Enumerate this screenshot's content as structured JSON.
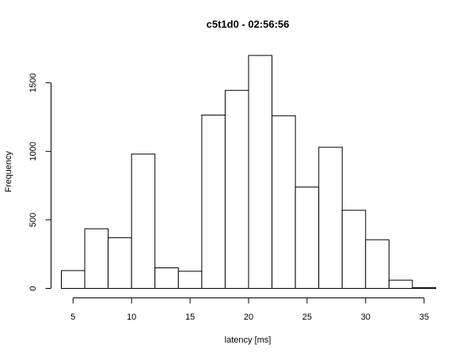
{
  "chart_data": {
    "type": "bar",
    "title": "c5t1d0 - 02:56:56",
    "xlabel": "latency [ms]",
    "ylabel": "Frequency",
    "bin_edges": [
      4,
      6,
      8,
      10,
      12,
      14,
      16,
      18,
      20,
      22,
      24,
      26,
      28,
      30,
      32,
      34,
      36
    ],
    "values": [
      130,
      435,
      370,
      980,
      150,
      125,
      1265,
      1445,
      1700,
      1260,
      740,
      1030,
      570,
      355,
      60,
      5
    ],
    "xticks": [
      5,
      10,
      15,
      20,
      25,
      30,
      35
    ],
    "yticks": [
      0,
      500,
      1000,
      1500
    ],
    "xlim": [
      4,
      36
    ],
    "ylim": [
      0,
      1750
    ],
    "grid": false,
    "colors": {
      "bar_fill": "#ffffff",
      "bar_stroke": "#000000",
      "axis": "#000000"
    }
  }
}
